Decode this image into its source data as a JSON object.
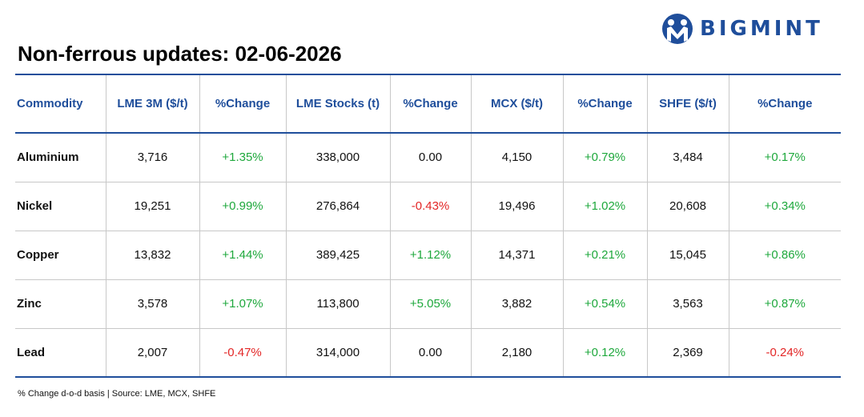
{
  "brand": {
    "name": "BIGMINT",
    "color": "#1f4e9b",
    "icon": "bigmint-logo-icon"
  },
  "title": "Non-ferrous updates: 02-06-2026",
  "table": {
    "headers": [
      "Commodity",
      "LME 3M ($/t)",
      "%Change",
      "LME Stocks (t)",
      "%Change",
      "MCX ($/t)",
      "%Change",
      "SHFE ($/t)",
      "%Change"
    ],
    "rows": [
      [
        "Aluminium",
        "3,716",
        "+1.35%",
        "338,000",
        "0.00",
        "4,150",
        "+0.79%",
        "3,484",
        "+0.17%"
      ],
      [
        "Nickel",
        "19,251",
        "+0.99%",
        "276,864",
        "-0.43%",
        "19,496",
        "+1.02%",
        "20,608",
        "+0.34%"
      ],
      [
        "Copper",
        "13,832",
        "+1.44%",
        "389,425",
        "+1.12%",
        "14,371",
        "+0.21%",
        "15,045",
        "+0.86%"
      ],
      [
        "Zinc",
        "3,578",
        "+1.07%",
        "113,800",
        "+5.05%",
        "3,882",
        "+0.54%",
        "3,563",
        "+0.87%"
      ],
      [
        "Lead",
        "2,007",
        "-0.47%",
        "314,000",
        "0.00",
        "2,180",
        "+0.12%",
        "2,369",
        "-0.24%"
      ]
    ]
  },
  "colors": {
    "positive": "#1ea83c",
    "negative": "#e32626",
    "neutral": "#111111"
  },
  "footnote": "% Change d-o-d basis | Source: LME, MCX, SHFE"
}
